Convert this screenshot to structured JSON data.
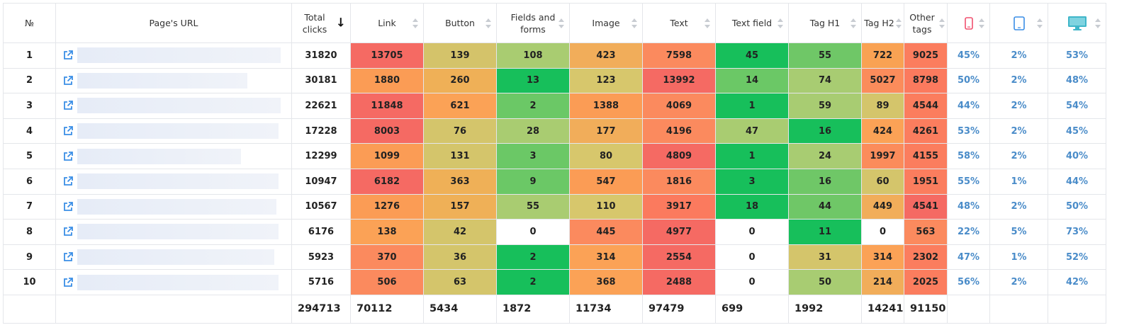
{
  "headers": {
    "num": "№",
    "url": "Page's URL",
    "total": "Total clicks",
    "link": "Link",
    "button": "Button",
    "fields": "Fields and forms",
    "image": "Image",
    "text": "Text",
    "textfield": "Text field",
    "h1": "Tag H1",
    "h2": "Tag H2",
    "other": "Other tags"
  },
  "icons": {
    "sort_active": "arrow-down-icon",
    "sort": "sort-icon",
    "external": "external-link-icon",
    "mobile": "mobile-phone-icon",
    "tablet": "tablet-icon",
    "desktop": "desktop-monitor-icon"
  },
  "colors": {
    "mobile_icon": "#f0506e",
    "tablet_icon": "#3a8ee6",
    "desktop_icon": "#3fb6c9",
    "percent_text": "#4a8cc9",
    "link_icon": "#3a8ee6"
  },
  "rows": [
    {
      "num": "1",
      "total": "31820",
      "link": "13705",
      "button": "139",
      "fields": "108",
      "image": "423",
      "text": "7598",
      "textfield": "45",
      "h1": "55",
      "h2": "722",
      "other": "9025",
      "mobile": "45%",
      "tablet": "2%",
      "desktop": "53%",
      "url_fill": 0.97,
      "colors": {
        "link": "#f56a63",
        "button": "#d4c36a",
        "fields": "#a9cc71",
        "image": "#f1ad5a",
        "text": "#fb8a5e",
        "textfield": "#17bf5b",
        "h1": "#6fc767",
        "h2": "#f9a253",
        "other": "#fb7d5e"
      }
    },
    {
      "num": "2",
      "total": "30181",
      "link": "1880",
      "button": "260",
      "fields": "13",
      "image": "123",
      "text": "13992",
      "textfield": "14",
      "h1": "74",
      "h2": "5027",
      "other": "8798",
      "mobile": "50%",
      "tablet": "2%",
      "desktop": "48%",
      "url_fill": 0.81,
      "colors": {
        "link": "#fb9c55",
        "button": "#efb057",
        "fields": "#17bf5b",
        "image": "#d7c76c",
        "text": "#f56a63",
        "textfield": "#6bc866",
        "h1": "#a8cc72",
        "h2": "#fb8c5b",
        "other": "#fb7a5e"
      }
    },
    {
      "num": "3",
      "total": "22621",
      "link": "11848",
      "button": "621",
      "fields": "2",
      "image": "1388",
      "text": "4069",
      "textfield": "1",
      "h1": "59",
      "h2": "89",
      "other": "4544",
      "mobile": "44%",
      "tablet": "2%",
      "desktop": "54%",
      "url_fill": 0.97,
      "colors": {
        "link": "#f56a63",
        "button": "#fba256",
        "fields": "#6bc866",
        "image": "#fb9c55",
        "text": "#fb8a5e",
        "textfield": "#17bf5b",
        "h1": "#a8cc72",
        "h2": "#d4c56b",
        "other": "#fb7d5e"
      }
    },
    {
      "num": "4",
      "total": "17228",
      "link": "8003",
      "button": "76",
      "fields": "28",
      "image": "177",
      "text": "4196",
      "textfield": "47",
      "h1": "16",
      "h2": "424",
      "other": "4261",
      "mobile": "53%",
      "tablet": "2%",
      "desktop": "45%",
      "url_fill": 0.96,
      "colors": {
        "link": "#f56a63",
        "button": "#d4c56b",
        "fields": "#a9cc71",
        "image": "#f1ad5a",
        "text": "#fb8a5e",
        "textfield": "#a9cc71",
        "h1": "#17bf5b",
        "h2": "#fba256",
        "other": "#fb7d5e"
      }
    },
    {
      "num": "5",
      "total": "12299",
      "link": "1099",
      "button": "131",
      "fields": "3",
      "image": "80",
      "text": "4809",
      "textfield": "1",
      "h1": "24",
      "h2": "1997",
      "other": "4155",
      "mobile": "58%",
      "tablet": "2%",
      "desktop": "40%",
      "url_fill": 0.78,
      "colors": {
        "link": "#fb9c55",
        "button": "#d4c56b",
        "fields": "#6bc866",
        "image": "#d7c76c",
        "text": "#f56a63",
        "textfield": "#17bf5b",
        "h1": "#a8cc72",
        "h2": "#fb8c5b",
        "other": "#fb7d5e"
      }
    },
    {
      "num": "6",
      "total": "10947",
      "link": "6182",
      "button": "363",
      "fields": "9",
      "image": "547",
      "text": "1816",
      "textfield": "3",
      "h1": "16",
      "h2": "60",
      "other": "1951",
      "mobile": "55%",
      "tablet": "1%",
      "desktop": "44%",
      "url_fill": 0.96,
      "colors": {
        "link": "#f56a63",
        "button": "#efb057",
        "fields": "#6bc866",
        "image": "#fb9c55",
        "text": "#fb8a5e",
        "textfield": "#17bf5b",
        "h1": "#6fc767",
        "h2": "#d4c56b",
        "other": "#fb7d5e"
      }
    },
    {
      "num": "7",
      "total": "10567",
      "link": "1276",
      "button": "157",
      "fields": "55",
      "image": "110",
      "text": "3917",
      "textfield": "18",
      "h1": "44",
      "h2": "449",
      "other": "4541",
      "mobile": "48%",
      "tablet": "2%",
      "desktop": "50%",
      "url_fill": 0.95,
      "colors": {
        "link": "#fb9c55",
        "button": "#efb057",
        "fields": "#a9cc71",
        "image": "#d7c76c",
        "text": "#fb7a5e",
        "textfield": "#17bf5b",
        "h1": "#6fc767",
        "h2": "#f1ad5a",
        "other": "#f56a63"
      }
    },
    {
      "num": "8",
      "total": "6176",
      "link": "138",
      "button": "42",
      "fields": "0",
      "image": "445",
      "text": "4977",
      "textfield": "0",
      "h1": "11",
      "h2": "0",
      "other": "563",
      "mobile": "22%",
      "tablet": "5%",
      "desktop": "73%",
      "url_fill": 0.96,
      "colors": {
        "link": "#fba256",
        "button": "#d4c56b",
        "fields": "#ffffff",
        "image": "#fb8a5e",
        "text": "#f56a63",
        "textfield": "#ffffff",
        "h1": "#17bf5b",
        "h2": "#ffffff",
        "other": "#fb8a5e"
      }
    },
    {
      "num": "9",
      "total": "5923",
      "link": "370",
      "button": "36",
      "fields": "2",
      "image": "314",
      "text": "2554",
      "textfield": "0",
      "h1": "31",
      "h2": "314",
      "other": "2302",
      "mobile": "47%",
      "tablet": "1%",
      "desktop": "52%",
      "url_fill": 0.94,
      "colors": {
        "link": "#fb8a5e",
        "button": "#d4c56b",
        "fields": "#17bf5b",
        "image": "#fba256",
        "text": "#f56a63",
        "textfield": "#ffffff",
        "h1": "#d4c56b",
        "h2": "#fba256",
        "other": "#fb7d5e"
      }
    },
    {
      "num": "10",
      "total": "5716",
      "link": "506",
      "button": "63",
      "fields": "2",
      "image": "368",
      "text": "2488",
      "textfield": "0",
      "h1": "50",
      "h2": "214",
      "other": "2025",
      "mobile": "56%",
      "tablet": "2%",
      "desktop": "42%",
      "url_fill": 0.96,
      "colors": {
        "link": "#fb8a5e",
        "button": "#d4c56b",
        "fields": "#17bf5b",
        "image": "#fba256",
        "text": "#f56a63",
        "textfield": "#ffffff",
        "h1": "#a8cc72",
        "h2": "#f1ad5a",
        "other": "#fb7d5e"
      }
    }
  ],
  "totals": {
    "total": "294713",
    "link": "70112",
    "button": "5434",
    "fields": "1872",
    "image": "11734",
    "text": "97479",
    "textfield": "699",
    "h1": "1992",
    "h2": "14241",
    "other": "91150"
  }
}
